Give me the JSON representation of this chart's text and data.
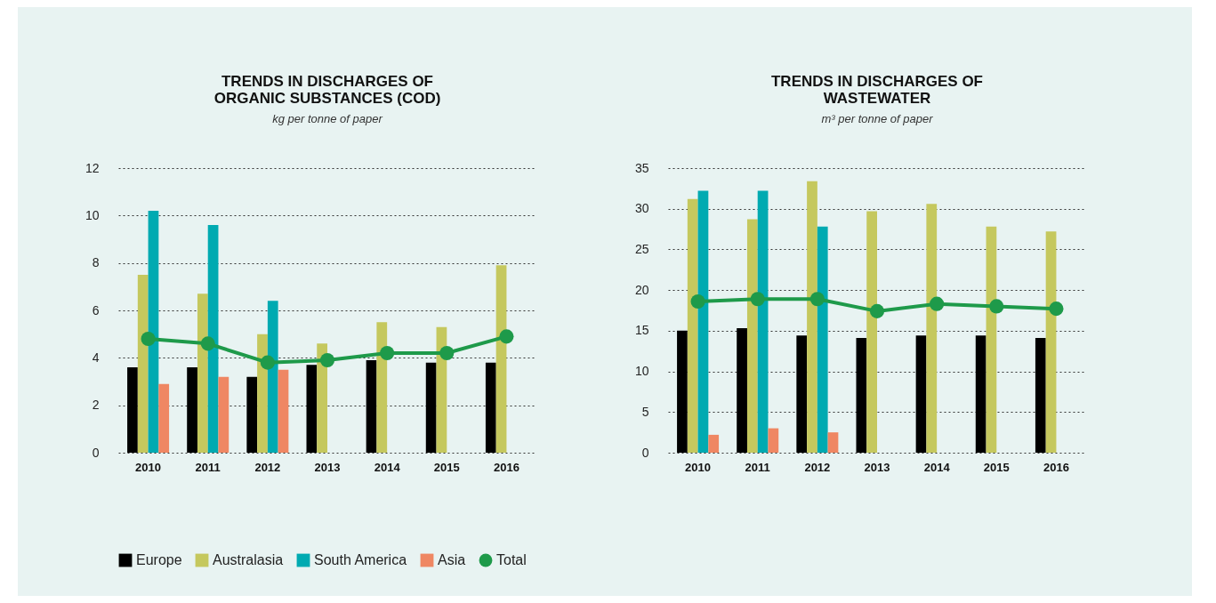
{
  "chart_data": [
    {
      "type": "bar",
      "title": "TRENDS IN DISCHARGES OF\nORGANIC SUBSTANCES (COD)",
      "subtitle": "kg per tonne of paper",
      "categories": [
        "2010",
        "2011",
        "2012",
        "2013",
        "2014",
        "2015",
        "2016"
      ],
      "series": [
        {
          "name": "Europe",
          "color": "#000000",
          "values": [
            3.6,
            3.6,
            3.2,
            3.7,
            3.9,
            3.8,
            3.8
          ]
        },
        {
          "name": "Australasia",
          "color": "#c5c85e",
          "values": [
            7.5,
            6.7,
            5.0,
            4.6,
            5.5,
            5.3,
            7.9
          ]
        },
        {
          "name": "South America",
          "color": "#00aab1",
          "values": [
            10.2,
            9.6,
            6.4,
            null,
            null,
            null,
            null
          ]
        },
        {
          "name": "Asia",
          "color": "#ef8763",
          "values": [
            2.9,
            3.2,
            3.5,
            null,
            null,
            null,
            null
          ]
        },
        {
          "name": "Total",
          "color": "#1e9a4a",
          "type": "line",
          "marker": "circle",
          "values": [
            4.8,
            4.6,
            3.8,
            3.9,
            4.2,
            4.2,
            4.9
          ]
        }
      ],
      "ylim": [
        0,
        12
      ],
      "yticks": [
        0,
        2,
        4,
        6,
        8,
        10,
        12
      ],
      "grid": "y",
      "legend": "bottom"
    },
    {
      "type": "bar",
      "title": "TRENDS IN DISCHARGES OF\nWASTEWATER",
      "subtitle": "m³ per tonne of paper",
      "categories": [
        "2010",
        "2011",
        "2012",
        "2013",
        "2014",
        "2015",
        "2016"
      ],
      "series": [
        {
          "name": "Europe",
          "color": "#000000",
          "values": [
            15.0,
            15.3,
            14.4,
            14.1,
            14.4,
            14.4,
            14.1
          ]
        },
        {
          "name": "Australasia",
          "color": "#c5c85e",
          "values": [
            31.2,
            28.7,
            33.4,
            29.7,
            30.6,
            27.8,
            27.2
          ]
        },
        {
          "name": "South America",
          "color": "#00aab1",
          "values": [
            32.2,
            32.2,
            27.8,
            null,
            null,
            null,
            null
          ]
        },
        {
          "name": "Asia",
          "color": "#ef8763",
          "values": [
            2.2,
            3.0,
            2.5,
            null,
            null,
            null,
            null
          ]
        },
        {
          "name": "Total",
          "color": "#1e9a4a",
          "type": "line",
          "marker": "circle",
          "values": [
            18.6,
            18.9,
            18.9,
            17.4,
            18.3,
            18.0,
            17.7
          ]
        }
      ],
      "ylim": [
        0,
        35
      ],
      "yticks": [
        0,
        5,
        10,
        15,
        20,
        25,
        30,
        35
      ],
      "grid": "y"
    }
  ]
}
